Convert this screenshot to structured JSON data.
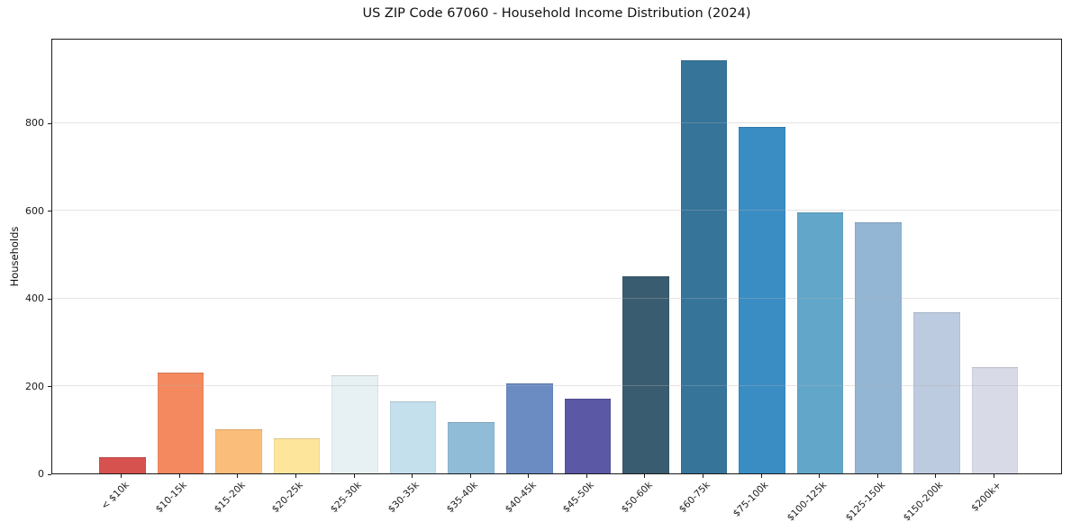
{
  "chart_data": {
    "type": "bar",
    "title": "US ZIP Code 67060 - Household Income Distribution (2024)",
    "xlabel": "",
    "ylabel": "Households",
    "categories": [
      "< $10k",
      "$10-15k",
      "$15-20k",
      "$20-25k",
      "$25-30k",
      "$30-35k",
      "$35-40k",
      "$40-45k",
      "$45-50k",
      "$50-60k",
      "$60-75k",
      "$75-100k",
      "$100-125k",
      "$125-150k",
      "$150-200k",
      "$200k+"
    ],
    "values": [
      38,
      231,
      100,
      80,
      223,
      164,
      118,
      205,
      170,
      450,
      943,
      791,
      596,
      573,
      368,
      243
    ],
    "bar_colors": [
      "#d6524e",
      "#f4895f",
      "#fbbd7a",
      "#fde59c",
      "#e7f1f3",
      "#c5e0ed",
      "#91bcd8",
      "#6a8cc3",
      "#5b58a6",
      "#3a5c70",
      "#36749a",
      "#398dc3",
      "#62a7ca",
      "#93b6d4",
      "#bdcbe0",
      "#d8dae8"
    ],
    "yticks": [
      0,
      200,
      400,
      600,
      800
    ],
    "ylim": [
      0,
      994
    ],
    "grid": "horizontal gridlines at y ticks, light gray, drawn over bars",
    "legend": "none",
    "background_color": "#ffffff",
    "axis_color": "#1a1a1a"
  }
}
